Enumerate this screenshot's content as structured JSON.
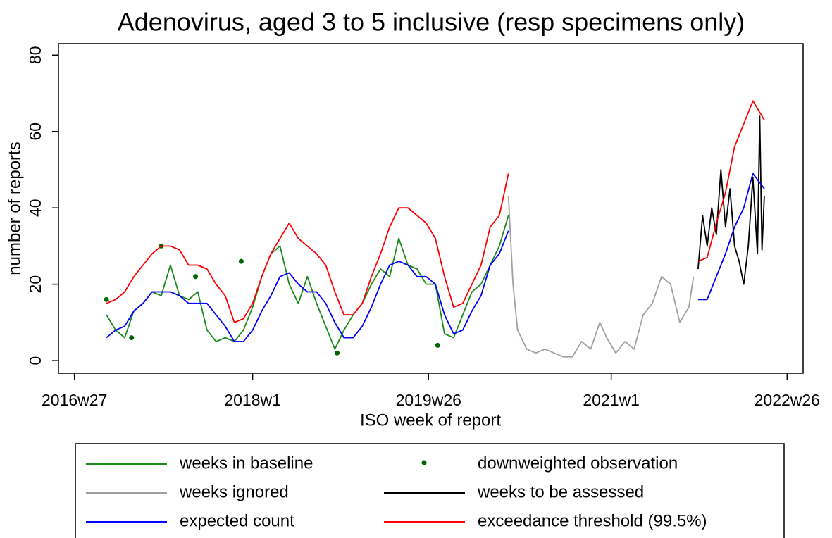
{
  "chart_data": {
    "type": "line",
    "title": "Adenovirus, aged 3 to 5 inclusive (resp specimens only)",
    "xlabel": "ISO week of report",
    "ylabel": "number of reports",
    "xlim": [
      "2016w20",
      "2022w33"
    ],
    "xticks": [
      "2016w27",
      "2018w1",
      "2019w26",
      "2021w1",
      "2022w26"
    ],
    "ylim": [
      -3.3,
      83
    ],
    "yticks": [
      0,
      20,
      40,
      60,
      80
    ],
    "grid": false,
    "legend": "bottom",
    "series": [
      {
        "name": "weeks in baseline",
        "color": "#1a8a1a",
        "style": "line",
        "x": [
          "2016w41",
          "2016w45",
          "2016w49",
          "2017w1",
          "2017w5",
          "2017w9",
          "2017w13",
          "2017w17",
          "2017w21",
          "2017w25",
          "2017w29",
          "2017w33",
          "2017w37",
          "2017w41",
          "2017w45",
          "2017w49",
          "2018w1",
          "2018w5",
          "2018w9",
          "2018w13",
          "2018w17",
          "2018w21",
          "2018w25",
          "2018w29",
          "2018w33",
          "2018w37",
          "2018w41",
          "2018w45",
          "2018w49",
          "2019w1",
          "2019w5",
          "2019w9",
          "2019w13",
          "2019w17",
          "2019w21",
          "2019w25",
          "2019w29",
          "2019w33",
          "2019w37",
          "2019w41",
          "2019w45",
          "2019w49",
          "2020w1",
          "2020w5",
          "2020w9"
        ],
        "values": [
          12,
          8,
          6,
          13,
          15,
          18,
          17,
          25,
          17,
          16,
          18,
          8,
          5,
          6,
          5,
          8,
          14,
          22,
          28,
          30,
          20,
          15,
          22,
          15,
          9,
          3,
          8,
          12,
          15,
          20,
          24,
          22,
          32,
          25,
          24,
          20,
          20,
          7,
          6,
          12,
          18,
          20,
          25,
          30,
          38
        ]
      },
      {
        "name": "downweighted observation",
        "color": "#006400",
        "style": "dot",
        "x": [
          "2016w41",
          "2016w52",
          "2017w13",
          "2017w28",
          "2017w48",
          "2018w38",
          "2019w30"
        ],
        "values": [
          16,
          6,
          30,
          22,
          26,
          2,
          4
        ]
      },
      {
        "name": "weeks ignored",
        "color": "#a0a0a0",
        "style": "line",
        "x": [
          "2020w9",
          "2020w11",
          "2020w13",
          "2020w17",
          "2020w21",
          "2020w25",
          "2020w29",
          "2020w33",
          "2020w37",
          "2020w41",
          "2020w45",
          "2020w49",
          "2020w52",
          "2021w3",
          "2021w7",
          "2021w11",
          "2021w15",
          "2021w19",
          "2021w23",
          "2021w27",
          "2021w31",
          "2021w35",
          "2021w37"
        ],
        "values": [
          43,
          20,
          8,
          3,
          2,
          3,
          2,
          1,
          1,
          5,
          3,
          10,
          6,
          2,
          5,
          3,
          12,
          15,
          22,
          20,
          10,
          14,
          22
        ]
      },
      {
        "name": "weeks to be assessed",
        "color": "#000000",
        "style": "line",
        "x": [
          "2021w39",
          "2021w41",
          "2021w43",
          "2021w45",
          "2021w47",
          "2021w49",
          "2021w51",
          "2022w1",
          "2022w3",
          "2022w5",
          "2022w7",
          "2022w9",
          "2022w11",
          "2022w13",
          "2022w14",
          "2022w15",
          "2022w16"
        ],
        "values": [
          24,
          38,
          30,
          40,
          33,
          50,
          35,
          45,
          30,
          26,
          20,
          30,
          48,
          28,
          64,
          29,
          43
        ]
      },
      {
        "name": "expected count",
        "color": "#0000ff",
        "style": "line",
        "x": [
          "2016w41",
          "2016w45",
          "2016w49",
          "2017w1",
          "2017w5",
          "2017w9",
          "2017w13",
          "2017w17",
          "2017w21",
          "2017w25",
          "2017w29",
          "2017w33",
          "2017w37",
          "2017w41",
          "2017w45",
          "2017w49",
          "2018w1",
          "2018w5",
          "2018w9",
          "2018w13",
          "2018w17",
          "2018w21",
          "2018w25",
          "2018w29",
          "2018w33",
          "2018w37",
          "2018w41",
          "2018w45",
          "2018w49",
          "2019w1",
          "2019w5",
          "2019w9",
          "2019w13",
          "2019w17",
          "2019w21",
          "2019w25",
          "2019w29",
          "2019w33",
          "2019w37",
          "2019w41",
          "2019w45",
          "2019w49",
          "2020w1",
          "2020w5",
          "2020w9",
          "2020w10",
          "2021w39",
          "2021w43",
          "2021w47",
          "2021w51",
          "2022w3",
          "2022w7",
          "2022w11",
          "2022w16"
        ],
        "values": [
          6,
          8,
          9,
          13,
          15,
          18,
          18,
          18,
          17,
          15,
          15,
          15,
          12,
          9,
          5,
          5,
          8,
          13,
          17,
          22,
          23,
          20,
          18,
          18,
          15,
          10,
          6,
          6,
          9,
          14,
          20,
          25,
          26,
          25,
          22,
          22,
          20,
          12,
          7,
          8,
          13,
          17,
          25,
          28,
          34,
          null,
          16,
          16,
          22,
          28,
          35,
          40,
          49,
          45
        ]
      },
      {
        "name": "exceedance threshold (99.5%)",
        "color": "#ff0000",
        "style": "line",
        "x": [
          "2016w41",
          "2016w45",
          "2016w49",
          "2017w1",
          "2017w5",
          "2017w9",
          "2017w13",
          "2017w17",
          "2017w21",
          "2017w25",
          "2017w29",
          "2017w33",
          "2017w37",
          "2017w41",
          "2017w45",
          "2017w49",
          "2018w1",
          "2018w5",
          "2018w9",
          "2018w13",
          "2018w17",
          "2018w21",
          "2018w25",
          "2018w29",
          "2018w33",
          "2018w37",
          "2018w41",
          "2018w45",
          "2018w49",
          "2019w1",
          "2019w5",
          "2019w9",
          "2019w13",
          "2019w17",
          "2019w21",
          "2019w25",
          "2019w29",
          "2019w33",
          "2019w37",
          "2019w41",
          "2019w45",
          "2019w49",
          "2020w1",
          "2020w5",
          "2020w9",
          "2020w10",
          "2021w39",
          "2021w43",
          "2021w47",
          "2021w51",
          "2022w3",
          "2022w7",
          "2022w11",
          "2022w16"
        ],
        "values": [
          15,
          16,
          18,
          22,
          25,
          28,
          30,
          30,
          29,
          25,
          25,
          24,
          20,
          17,
          10,
          11,
          15,
          22,
          28,
          32,
          36,
          32,
          30,
          28,
          25,
          18,
          12,
          12,
          15,
          22,
          28,
          35,
          40,
          40,
          38,
          36,
          32,
          22,
          14,
          15,
          20,
          25,
          35,
          38,
          49,
          null,
          26,
          27,
          36,
          44,
          56,
          62,
          68,
          63
        ]
      }
    ]
  }
}
